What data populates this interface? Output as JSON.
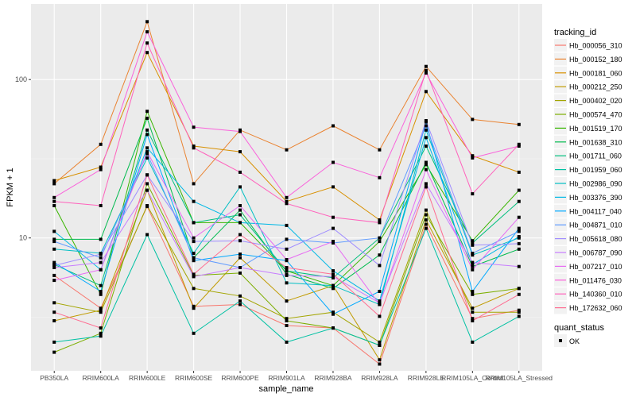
{
  "chart_data": {
    "type": "line",
    "xlabel": "sample_name",
    "ylabel": "FPKM + 1",
    "y_scale": "log10",
    "ylim": [
      1.45,
      300
    ],
    "y_ticks": [
      10,
      100
    ],
    "grid": true,
    "categories": [
      "PB350LA",
      "RRIM600LA",
      "RRIM600LE",
      "RRIM600SE",
      "RRIM600PE",
      "RRIM901LA",
      "RRIM928BA",
      "RRIM928LA",
      "RRIM928LE",
      "RRIM105LA_Control",
      "RRIM105LA_Stressed"
    ],
    "category_labels": [
      "PB350LA",
      "RRIM600LA",
      "RRIM600LE",
      "RRIM600SE",
      "RRIM600PE",
      "RRIM901LA",
      "RRIM928BA",
      "RRIM928LA",
      "RRIM928LE",
      "RRIM105LA_Control",
      "RRIM105LA_Stressed"
    ],
    "legend_title": "tracking_id",
    "legend_position": "right",
    "series": [
      {
        "name": "Hb_000056_310",
        "color": "#F8766D",
        "values": [
          5.8,
          3.6,
          15.8,
          3.7,
          3.8,
          2.8,
          2.7,
          1.6,
          12.2,
          3.1,
          3.5
        ]
      },
      {
        "name": "Hb_000152_180",
        "color": "#EA8331",
        "values": [
          22.0,
          39.0,
          232.0,
          22.0,
          48.0,
          36.0,
          51.0,
          36.0,
          121.0,
          56.0,
          52.0
        ]
      },
      {
        "name": "Hb_000181_060",
        "color": "#D89000",
        "values": [
          23.0,
          28.0,
          148.0,
          38.0,
          35.0,
          17.0,
          21.0,
          13.0,
          84.0,
          33.0,
          26.0
        ]
      },
      {
        "name": "Hb_000212_250",
        "color": "#C09B00",
        "values": [
          3.0,
          3.5,
          20.0,
          3.6,
          7.5,
          4.0,
          5.0,
          1.7,
          13.0,
          3.6,
          4.8
        ]
      },
      {
        "name": "Hb_000402_020",
        "color": "#A3A500",
        "values": [
          3.9,
          3.4,
          16.0,
          4.8,
          4.3,
          3.1,
          3.4,
          2.2,
          15.0,
          3.4,
          3.4
        ]
      },
      {
        "name": "Hb_000574_470",
        "color": "#7CAE00",
        "values": [
          1.9,
          2.5,
          22.0,
          5.8,
          6.0,
          3.0,
          2.7,
          2.1,
          14.0,
          4.4,
          4.8
        ]
      },
      {
        "name": "Hb_001519_170",
        "color": "#39B600",
        "values": [
          16.0,
          4.4,
          63.0,
          12.5,
          12.5,
          6.2,
          5.0,
          9.5,
          29.0,
          9.6,
          20.0
        ]
      },
      {
        "name": "Hb_001638_310",
        "color": "#00BB4E",
        "values": [
          9.8,
          9.8,
          57.0,
          7.5,
          15.0,
          5.9,
          4.8,
          7.8,
          30.0,
          6.6,
          8.5
        ]
      },
      {
        "name": "Hb_001711_060",
        "color": "#00BF7D",
        "values": [
          6.8,
          5.0,
          48.0,
          12.5,
          14.0,
          6.2,
          5.6,
          10.0,
          38.0,
          9.3,
          17.0
        ]
      },
      {
        "name": "Hb_001959_060",
        "color": "#00C1A3",
        "values": [
          2.2,
          2.4,
          10.5,
          2.5,
          4.0,
          2.2,
          2.7,
          2.1,
          11.5,
          2.2,
          3.2
        ]
      },
      {
        "name": "Hb_002986_090",
        "color": "#00BFC4",
        "values": [
          8.5,
          8.0,
          32.0,
          8.0,
          21.0,
          5.2,
          5.0,
          3.8,
          48.0,
          7.8,
          10.0
        ]
      },
      {
        "name": "Hb_003376_390",
        "color": "#00B8E5",
        "values": [
          11.0,
          6.3,
          37.0,
          17.0,
          12.5,
          12.0,
          6.2,
          4.0,
          43.0,
          6.8,
          10.2
        ]
      },
      {
        "name": "Hb_004117_040",
        "color": "#00A9FF",
        "values": [
          7.0,
          4.6,
          45.0,
          7.2,
          7.9,
          7.2,
          3.3,
          4.6,
          54.0,
          4.6,
          11.5
        ]
      },
      {
        "name": "Hb_004871_010",
        "color": "#619CFF",
        "values": [
          9.5,
          7.5,
          34.0,
          7.5,
          6.5,
          9.8,
          9.3,
          10.0,
          51.0,
          8.0,
          11.0
        ]
      },
      {
        "name": "Hb_005618_080",
        "color": "#9F8CFF",
        "values": [
          6.7,
          7.9,
          25.0,
          9.5,
          9.6,
          8.5,
          11.5,
          6.7,
          55.0,
          9.0,
          9.2
        ]
      },
      {
        "name": "Hb_006787_090",
        "color": "#C77CFF",
        "values": [
          6.5,
          7.0,
          20.0,
          5.7,
          6.5,
          5.8,
          5.7,
          3.9,
          22.0,
          7.0,
          6.6
        ]
      },
      {
        "name": "Hb_007217_010",
        "color": "#E76BF3",
        "values": [
          5.4,
          6.3,
          35.0,
          10.0,
          16.0,
          7.3,
          9.5,
          3.8,
          27.0,
          6.3,
          13.5
        ]
      },
      {
        "name": "Hb_011476_030",
        "color": "#FA62DB",
        "values": [
          18.0,
          27.0,
          200.0,
          50.0,
          47.0,
          18.0,
          30.0,
          24.0,
          110.0,
          32.0,
          38.0
        ]
      },
      {
        "name": "Hb_140360_010",
        "color": "#FF62BC",
        "values": [
          17.0,
          16.0,
          170.0,
          37.0,
          26.0,
          16.5,
          13.5,
          12.5,
          114.0,
          19.0,
          39.0
        ]
      },
      {
        "name": "Hb_172632_060",
        "color": "#FF6C91",
        "values": [
          3.4,
          2.7,
          25.0,
          5.9,
          10.5,
          6.5,
          5.9,
          3.2,
          21.0,
          3.0,
          4.4
        ]
      }
    ],
    "point_color": "#000000",
    "point_legend": {
      "title": "quant_status",
      "label": "OK"
    }
  }
}
